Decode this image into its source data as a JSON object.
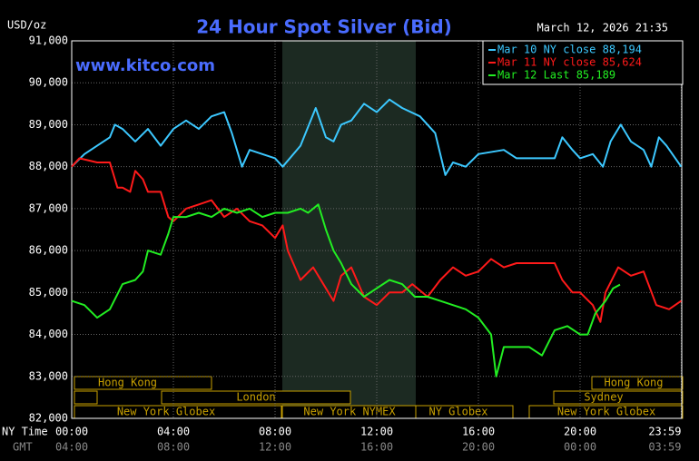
{
  "chart_data": {
    "type": "line",
    "title": "24 Hour Spot Silver (Bid)",
    "y_label": "USD/oz",
    "timestamp": "March 12, 2026 21:35",
    "watermark": "www.kitco.com",
    "x_row_labels": [
      "NY Time",
      "GMT"
    ],
    "xlim": [
      0,
      24
    ],
    "xticks": [
      {
        "value": 0,
        "label": "00:00"
      },
      {
        "value": 4,
        "label": "04:00"
      },
      {
        "value": 8,
        "label": "08:00"
      },
      {
        "value": 12,
        "label": "12:00"
      },
      {
        "value": 16,
        "label": "16:00"
      },
      {
        "value": 20,
        "label": "20:00"
      },
      {
        "value": 23.98,
        "label": "23:59"
      }
    ],
    "gmt_ticks": [
      "04:00",
      "08:00",
      "12:00",
      "16:00",
      "20:00",
      "00:00",
      "03:59"
    ],
    "ylim": [
      82,
      91
    ],
    "yticks": [
      {
        "value": 82,
        "label": "82,000"
      },
      {
        "value": 83,
        "label": "83,000"
      },
      {
        "value": 84,
        "label": "84,000"
      },
      {
        "value": 85,
        "label": "85,000"
      },
      {
        "value": 86,
        "label": "86,000"
      },
      {
        "value": 87,
        "label": "87,000"
      },
      {
        "value": 88,
        "label": "88,000"
      },
      {
        "value": 89,
        "label": "89,000"
      },
      {
        "value": 90,
        "label": "90,000"
      },
      {
        "value": 91,
        "label": "91,000"
      }
    ],
    "grid": true,
    "legend": "upper right",
    "sessions": [
      "Hong Kong",
      "London",
      "New York Globex",
      "New York NYMEX",
      "NY Globex",
      "Hong Kong",
      "Sydney",
      "New York Globex"
    ],
    "series": [
      {
        "name": "Mar 10 NY close 88,194",
        "color": "#3cc8ff",
        "x": [
          0,
          0.5,
          1,
          1.5,
          1.7,
          2,
          2.5,
          3,
          3.5,
          4,
          4.5,
          5,
          5.5,
          6,
          6.3,
          6.7,
          7,
          7.5,
          8,
          8.3,
          9,
          9.6,
          10,
          10.3,
          10.6,
          11,
          11.5,
          12,
          12.5,
          13,
          13.7,
          14.3,
          14.7,
          15,
          15.5,
          16,
          17,
          17.5,
          19,
          19.3,
          19.7,
          20,
          20.5,
          20.9,
          21.2,
          21.6,
          22,
          22.5,
          22.8,
          23.1,
          23.4,
          23.98
        ],
        "values": [
          88.0,
          88.3,
          88.5,
          88.7,
          89.0,
          88.9,
          88.6,
          88.9,
          88.5,
          88.9,
          89.1,
          88.9,
          89.2,
          89.3,
          88.8,
          88.0,
          88.4,
          88.3,
          88.2,
          88.0,
          88.5,
          89.4,
          88.7,
          88.6,
          89.0,
          89.1,
          89.5,
          89.3,
          89.6,
          89.4,
          89.2,
          88.8,
          87.8,
          88.1,
          88.0,
          88.3,
          88.4,
          88.2,
          88.2,
          88.7,
          88.4,
          88.2,
          88.3,
          88.0,
          88.6,
          89.0,
          88.6,
          88.4,
          88.0,
          88.7,
          88.5,
          88.0
        ]
      },
      {
        "name": "Mar 11 NY close 85,624",
        "color": "#ff1a1a",
        "x": [
          0,
          0.3,
          1,
          1.5,
          1.7,
          1.8,
          2,
          2.3,
          2.5,
          2.8,
          3,
          3.5,
          3.8,
          4,
          4.5,
          5,
          5.5,
          6,
          6.5,
          7,
          7.5,
          8,
          8.3,
          8.5,
          9,
          9.5,
          10,
          10.3,
          10.6,
          11,
          11.5,
          12,
          12.5,
          13,
          13.4,
          14,
          14.5,
          15,
          15.5,
          16,
          16.5,
          17,
          17.5,
          19,
          19.3,
          19.7,
          20,
          20.5,
          20.8,
          21,
          21.5,
          22,
          22.5,
          23,
          23.5,
          23.98
        ],
        "values": [
          88.0,
          88.2,
          88.1,
          88.1,
          87.7,
          87.5,
          87.5,
          87.4,
          87.9,
          87.7,
          87.4,
          87.4,
          86.8,
          86.7,
          87.0,
          87.1,
          87.2,
          86.8,
          87.0,
          86.7,
          86.6,
          86.3,
          86.6,
          86.0,
          85.3,
          85.6,
          85.1,
          84.8,
          85.4,
          85.6,
          84.9,
          84.7,
          85.0,
          85.0,
          85.2,
          84.9,
          85.3,
          85.6,
          85.4,
          85.5,
          85.8,
          85.6,
          85.7,
          85.7,
          85.3,
          85.0,
          85.0,
          84.7,
          84.3,
          85.0,
          85.6,
          85.4,
          85.5,
          84.7,
          84.6,
          84.8
        ]
      },
      {
        "name": "Mar 12 Last 85,189",
        "color": "#22ee22",
        "x": [
          0,
          0.5,
          1,
          1.5,
          2,
          2.5,
          2.8,
          3,
          3.5,
          3.8,
          4,
          4.5,
          5,
          5.5,
          6,
          6.5,
          7,
          7.5,
          8,
          8.5,
          9,
          9.3,
          9.5,
          9.7,
          10,
          10.3,
          10.6,
          11,
          11.5,
          12,
          12.5,
          13,
          13.5,
          14,
          14.5,
          15,
          15.5,
          16,
          16.5,
          16.7,
          17,
          18,
          18.5,
          19,
          19.5,
          20,
          20.3,
          20.6,
          21,
          21.3,
          21.57
        ],
        "values": [
          84.8,
          84.7,
          84.4,
          84.6,
          85.2,
          85.3,
          85.5,
          86.0,
          85.9,
          86.4,
          86.8,
          86.8,
          86.9,
          86.8,
          87.0,
          86.9,
          87.0,
          86.8,
          86.9,
          86.9,
          87.0,
          86.9,
          87.0,
          87.1,
          86.5,
          86.0,
          85.7,
          85.2,
          84.9,
          85.1,
          85.3,
          85.2,
          84.9,
          84.9,
          84.8,
          84.7,
          84.6,
          84.4,
          84.0,
          83.0,
          83.7,
          83.7,
          83.5,
          84.1,
          84.2,
          84.0,
          84.0,
          84.5,
          84.8,
          85.1,
          85.189
        ]
      }
    ]
  }
}
